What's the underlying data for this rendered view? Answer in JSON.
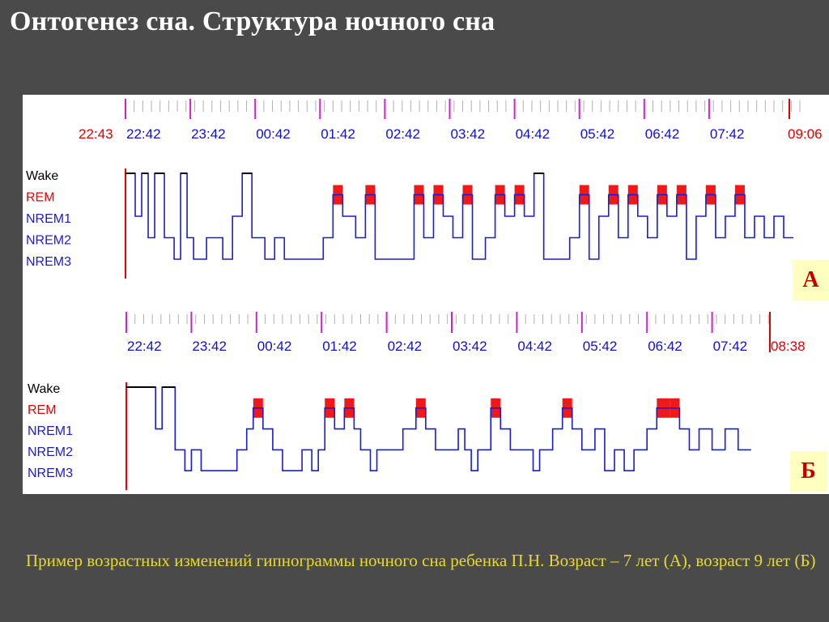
{
  "title": "Онтогенез сна. Структура ночного сна",
  "caption": "Пример возрастных изменений гипнограммы ночного сна ребенка П.Н. Возраст – 7 лет (А), возраст 9 лет (Б)",
  "colors": {
    "background": "#4a4a4a",
    "title": "#ffffff",
    "caption": "#e8d830",
    "time_labels": "#1010d0",
    "time_start_end": "#e00000",
    "nrem_line": "#1a1ad8",
    "rem_fill": "#ee0000",
    "wake_line": "#000000",
    "major_tick": "#d020d0",
    "badge_bg": "#ffffc0",
    "badge_text": "#c00000"
  },
  "chart_data": [
    {
      "type": "line",
      "panel_label": "А",
      "time_labels": [
        "22:42",
        "23:42",
        "00:42",
        "01:42",
        "02:42",
        "03:42",
        "04:42",
        "05:42",
        "06:42",
        "07:42"
      ],
      "start_label": "22:43",
      "end_label": "09:06",
      "stage_labels": [
        "Wake",
        "REM",
        "NREM1",
        "NREM2",
        "NREM3"
      ],
      "x_range_hours": [
        0,
        10.4
      ],
      "stages_levels": {
        "Wake": 0,
        "REM": 1,
        "NREM1": 2,
        "NREM2": 3,
        "NREM3": 4
      },
      "hypnogram": [
        [
          0.0,
          0
        ],
        [
          0.15,
          2
        ],
        [
          0.25,
          0
        ],
        [
          0.35,
          3
        ],
        [
          0.45,
          0
        ],
        [
          0.6,
          3
        ],
        [
          0.75,
          4
        ],
        [
          0.85,
          0
        ],
        [
          0.95,
          3
        ],
        [
          1.05,
          4
        ],
        [
          1.25,
          3
        ],
        [
          1.5,
          4
        ],
        [
          1.65,
          2
        ],
        [
          1.8,
          0
        ],
        [
          1.95,
          3
        ],
        [
          2.15,
          4
        ],
        [
          2.3,
          3
        ],
        [
          2.45,
          4
        ],
        [
          2.8,
          4
        ],
        [
          3.05,
          3
        ],
        [
          3.2,
          1
        ],
        [
          3.35,
          2
        ],
        [
          3.55,
          3
        ],
        [
          3.7,
          1
        ],
        [
          3.85,
          4
        ],
        [
          4.25,
          4
        ],
        [
          4.45,
          1
        ],
        [
          4.6,
          3
        ],
        [
          4.75,
          1
        ],
        [
          4.9,
          2
        ],
        [
          5.05,
          3
        ],
        [
          5.2,
          1
        ],
        [
          5.35,
          4
        ],
        [
          5.55,
          3
        ],
        [
          5.7,
          1
        ],
        [
          5.85,
          2
        ],
        [
          6.0,
          1
        ],
        [
          6.15,
          2
        ],
        [
          6.3,
          0
        ],
        [
          6.45,
          4
        ],
        [
          6.7,
          4
        ],
        [
          6.85,
          3
        ],
        [
          7.0,
          1
        ],
        [
          7.15,
          4
        ],
        [
          7.3,
          2
        ],
        [
          7.45,
          1
        ],
        [
          7.6,
          3
        ],
        [
          7.75,
          1
        ],
        [
          7.9,
          2
        ],
        [
          8.05,
          3
        ],
        [
          8.2,
          1
        ],
        [
          8.35,
          2
        ],
        [
          8.5,
          1
        ],
        [
          8.65,
          4
        ],
        [
          8.8,
          2
        ],
        [
          8.95,
          1
        ],
        [
          9.1,
          3
        ],
        [
          9.25,
          2
        ],
        [
          9.4,
          1
        ],
        [
          9.55,
          3
        ],
        [
          9.7,
          2
        ],
        [
          9.85,
          3
        ],
        [
          10.0,
          2
        ],
        [
          10.15,
          3
        ],
        [
          10.3,
          3
        ]
      ]
    },
    {
      "type": "line",
      "panel_label": "Б",
      "time_labels": [
        "22:42",
        "23:42",
        "00:42",
        "01:42",
        "02:42",
        "03:42",
        "04:42",
        "05:42",
        "06:42",
        "07:42"
      ],
      "end_label": "08:38",
      "stage_labels": [
        "Wake",
        "REM",
        "NREM1",
        "NREM2",
        "NREM3"
      ],
      "x_range_hours": [
        0,
        9.9
      ],
      "stages_levels": {
        "Wake": 0,
        "REM": 1,
        "NREM1": 2,
        "NREM2": 3,
        "NREM3": 4
      },
      "hypnogram": [
        [
          0.0,
          0
        ],
        [
          0.4,
          0
        ],
        [
          0.45,
          2
        ],
        [
          0.55,
          0
        ],
        [
          0.75,
          3
        ],
        [
          0.9,
          4
        ],
        [
          1.0,
          3
        ],
        [
          1.15,
          4
        ],
        [
          1.6,
          4
        ],
        [
          1.7,
          3
        ],
        [
          1.85,
          2
        ],
        [
          1.95,
          1
        ],
        [
          2.1,
          2
        ],
        [
          2.25,
          3
        ],
        [
          2.4,
          4
        ],
        [
          2.7,
          3
        ],
        [
          2.85,
          4
        ],
        [
          2.95,
          3
        ],
        [
          3.05,
          1
        ],
        [
          3.2,
          2
        ],
        [
          3.35,
          1
        ],
        [
          3.5,
          2
        ],
        [
          3.6,
          3
        ],
        [
          3.75,
          4
        ],
        [
          3.85,
          3
        ],
        [
          4.1,
          3
        ],
        [
          4.25,
          2
        ],
        [
          4.45,
          1
        ],
        [
          4.6,
          2
        ],
        [
          4.75,
          3
        ],
        [
          4.95,
          3
        ],
        [
          5.1,
          2
        ],
        [
          5.2,
          3
        ],
        [
          5.3,
          4
        ],
        [
          5.4,
          3
        ],
        [
          5.6,
          1
        ],
        [
          5.75,
          2
        ],
        [
          5.9,
          3
        ],
        [
          6.1,
          3
        ],
        [
          6.25,
          4
        ],
        [
          6.35,
          3
        ],
        [
          6.55,
          2
        ],
        [
          6.7,
          1
        ],
        [
          6.85,
          2
        ],
        [
          7.0,
          3
        ],
        [
          7.2,
          2
        ],
        [
          7.35,
          4
        ],
        [
          7.5,
          3
        ],
        [
          7.65,
          4
        ],
        [
          7.8,
          3
        ],
        [
          8.0,
          2
        ],
        [
          8.15,
          1
        ],
        [
          8.35,
          1
        ],
        [
          8.5,
          2
        ],
        [
          8.65,
          3
        ],
        [
          8.8,
          2
        ],
        [
          9.0,
          3
        ],
        [
          9.2,
          2
        ],
        [
          9.4,
          3
        ],
        [
          9.6,
          3
        ]
      ]
    }
  ]
}
